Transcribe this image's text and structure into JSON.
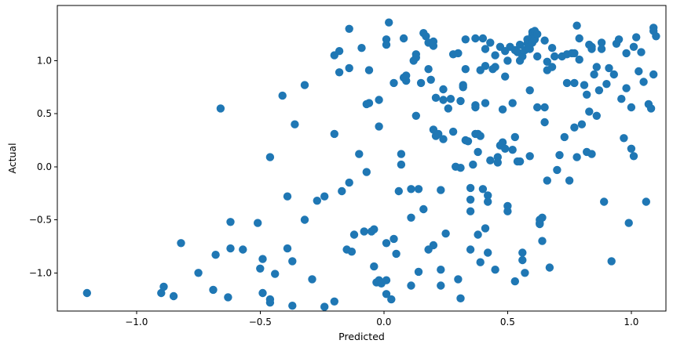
{
  "chart_data": {
    "type": "scatter",
    "title": "",
    "xlabel": "Predicted",
    "ylabel": "Actual",
    "xlim": [
      -1.32,
      1.14
    ],
    "ylim": [
      -1.36,
      1.52
    ],
    "xticks": [
      -1.0,
      -0.5,
      0.0,
      0.5,
      1.0
    ],
    "xtick_labels": [
      "−1.0",
      "−0.5",
      "0.0",
      "0.5",
      "1.0"
    ],
    "yticks": [
      -1.0,
      -0.5,
      0.0,
      0.5,
      1.0
    ],
    "ytick_labels": [
      "−1.0",
      "−0.5",
      "0.0",
      "0.5",
      "1.0"
    ],
    "grid": false,
    "legend": "none",
    "marker_color": "#1f77b4",
    "series": [
      {
        "points": [
          [
            -1.2,
            -1.19
          ],
          [
            -0.9,
            -1.19
          ],
          [
            -0.89,
            -1.13
          ],
          [
            -0.85,
            -1.22
          ],
          [
            -0.82,
            -0.72
          ],
          [
            -0.75,
            -1.0
          ],
          [
            -0.69,
            -1.16
          ],
          [
            -0.68,
            -0.83
          ],
          [
            -0.66,
            0.55
          ],
          [
            -0.63,
            -1.23
          ],
          [
            -0.62,
            -0.77
          ],
          [
            -0.62,
            -0.52
          ],
          [
            -0.57,
            -0.78
          ],
          [
            -0.51,
            -0.53
          ],
          [
            -0.5,
            -0.96
          ],
          [
            -0.49,
            -0.87
          ],
          [
            -0.49,
            -1.19
          ],
          [
            -0.46,
            -1.25
          ],
          [
            -0.46,
            -1.28
          ],
          [
            -0.46,
            0.09
          ],
          [
            -0.44,
            -1.01
          ],
          [
            -0.41,
            0.67
          ],
          [
            -0.39,
            -0.28
          ],
          [
            -0.39,
            -0.77
          ],
          [
            -0.37,
            -0.89
          ],
          [
            -0.37,
            -1.31
          ],
          [
            -0.36,
            0.4
          ],
          [
            -0.32,
            -0.5
          ],
          [
            -0.32,
            0.77
          ],
          [
            -0.29,
            -1.06
          ],
          [
            -0.27,
            -0.32
          ],
          [
            -0.24,
            -0.28
          ],
          [
            -0.24,
            -1.32
          ],
          [
            -0.2,
            -1.27
          ],
          [
            -0.2,
            0.31
          ],
          [
            -0.2,
            1.05
          ],
          [
            -0.18,
            1.09
          ],
          [
            -0.18,
            0.89
          ],
          [
            -0.17,
            -0.23
          ],
          [
            -0.15,
            -0.78
          ],
          [
            -0.14,
            0.93
          ],
          [
            -0.14,
            -0.15
          ],
          [
            -0.14,
            1.3
          ],
          [
            -0.13,
            -0.8
          ],
          [
            -0.12,
            -0.64
          ],
          [
            -0.1,
            0.12
          ],
          [
            -0.09,
            1.12
          ],
          [
            -0.08,
            -0.61
          ],
          [
            -0.07,
            0.59
          ],
          [
            -0.07,
            -0.05
          ],
          [
            -0.06,
            0.91
          ],
          [
            -0.06,
            0.6
          ],
          [
            -0.05,
            -0.61
          ],
          [
            -0.04,
            -0.59
          ],
          [
            -0.04,
            -0.94
          ],
          [
            -0.03,
            -1.09
          ],
          [
            -0.02,
            -1.07
          ],
          [
            -0.02,
            0.63
          ],
          [
            -0.02,
            0.38
          ],
          [
            -0.01,
            -1.1
          ],
          [
            0.01,
            -1.07
          ],
          [
            0.01,
            -1.2
          ],
          [
            0.01,
            1.2
          ],
          [
            0.01,
            -0.72
          ],
          [
            0.01,
            1.15
          ],
          [
            0.02,
            1.36
          ],
          [
            0.03,
            -1.25
          ],
          [
            0.04,
            -0.68
          ],
          [
            0.04,
            0.79
          ],
          [
            0.05,
            -0.82
          ],
          [
            0.06,
            -0.23
          ],
          [
            0.07,
            0.12
          ],
          [
            0.07,
            0.02
          ],
          [
            0.08,
            1.21
          ],
          [
            0.08,
            0.84
          ],
          [
            0.09,
            0.81
          ],
          [
            0.09,
            0.86
          ],
          [
            0.11,
            -0.48
          ],
          [
            0.11,
            -0.21
          ],
          [
            0.11,
            -1.12
          ],
          [
            0.12,
            1.0
          ],
          [
            0.13,
            1.06
          ],
          [
            0.13,
            1.03
          ],
          [
            0.13,
            0.48
          ],
          [
            0.14,
            -0.99
          ],
          [
            0.14,
            -0.21
          ],
          [
            0.15,
            0.79
          ],
          [
            0.16,
            -0.4
          ],
          [
            0.16,
            1.26
          ],
          [
            0.17,
            1.23
          ],
          [
            0.18,
            -0.78
          ],
          [
            0.18,
            0.92
          ],
          [
            0.18,
            1.17
          ],
          [
            0.19,
            0.82
          ],
          [
            0.2,
            1.14
          ],
          [
            0.2,
            1.18
          ],
          [
            0.2,
            -0.74
          ],
          [
            0.2,
            0.35
          ],
          [
            0.21,
            0.29
          ],
          [
            0.21,
            0.65
          ],
          [
            0.22,
            0.31
          ],
          [
            0.23,
            -0.22
          ],
          [
            0.23,
            -1.12
          ],
          [
            0.23,
            -0.97
          ],
          [
            0.24,
            0.63
          ],
          [
            0.24,
            0.73
          ],
          [
            0.24,
            0.26
          ],
          [
            0.25,
            -0.63
          ],
          [
            0.26,
            0.55
          ],
          [
            0.27,
            0.64
          ],
          [
            0.28,
            1.06
          ],
          [
            0.28,
            0.33
          ],
          [
            0.29,
            0.0
          ],
          [
            0.3,
            -1.06
          ],
          [
            0.3,
            1.07
          ],
          [
            0.31,
            -1.24
          ],
          [
            0.31,
            0.62
          ],
          [
            0.31,
            -0.01
          ],
          [
            0.32,
            0.75
          ],
          [
            0.32,
            0.77
          ],
          [
            0.33,
            0.92
          ],
          [
            0.33,
            1.2
          ],
          [
            0.33,
            0.25
          ],
          [
            0.34,
            0.24
          ],
          [
            0.35,
            -0.2
          ],
          [
            0.35,
            -0.31
          ],
          [
            0.35,
            -0.42
          ],
          [
            0.35,
            -0.78
          ],
          [
            0.36,
            0.02
          ],
          [
            0.37,
            0.58
          ],
          [
            0.37,
            0.56
          ],
          [
            0.37,
            0.31
          ],
          [
            0.37,
            1.21
          ],
          [
            0.38,
            0.14
          ],
          [
            0.38,
            0.31
          ],
          [
            0.38,
            -0.64
          ],
          [
            0.39,
            0.29
          ],
          [
            0.39,
            0.91
          ],
          [
            0.39,
            -0.9
          ],
          [
            0.4,
            1.21
          ],
          [
            0.4,
            -0.21
          ],
          [
            0.41,
            0.6
          ],
          [
            0.41,
            0.95
          ],
          [
            0.41,
            1.11
          ],
          [
            0.41,
            -0.58
          ],
          [
            0.42,
            -0.27
          ],
          [
            0.42,
            -0.33
          ],
          [
            0.42,
            -0.81
          ],
          [
            0.43,
            0.06
          ],
          [
            0.43,
            1.17
          ],
          [
            0.44,
            0.92
          ],
          [
            0.45,
            0.94
          ],
          [
            0.45,
            1.05
          ],
          [
            0.45,
            -0.97
          ],
          [
            0.46,
            0.04
          ],
          [
            0.46,
            0.09
          ],
          [
            0.47,
            0.2
          ],
          [
            0.47,
            1.13
          ],
          [
            0.48,
            0.23
          ],
          [
            0.48,
            0.54
          ],
          [
            0.49,
            1.09
          ],
          [
            0.49,
            0.17
          ],
          [
            0.49,
            0.85
          ],
          [
            0.5,
            -0.42
          ],
          [
            0.5,
            1.0
          ],
          [
            0.5,
            -0.37
          ],
          [
            0.51,
            1.13
          ],
          [
            0.52,
            0.6
          ],
          [
            0.52,
            0.16
          ],
          [
            0.53,
            -1.08
          ],
          [
            0.53,
            1.1
          ],
          [
            0.53,
            0.28
          ],
          [
            0.54,
            1.08
          ],
          [
            0.54,
            0.05
          ],
          [
            0.55,
            1.15
          ],
          [
            0.55,
            1.0
          ],
          [
            0.55,
            0.05
          ],
          [
            0.56,
            1.04
          ],
          [
            0.56,
            -0.81
          ],
          [
            0.56,
            -0.88
          ],
          [
            0.57,
            -1.0
          ],
          [
            0.57,
            1.1
          ],
          [
            0.58,
            1.16
          ],
          [
            0.58,
            1.2
          ],
          [
            0.59,
            0.72
          ],
          [
            0.59,
            0.1
          ],
          [
            0.59,
            1.11
          ],
          [
            0.6,
            1.17
          ],
          [
            0.6,
            1.24
          ],
          [
            0.6,
            1.27
          ],
          [
            0.61,
            1.2
          ],
          [
            0.61,
            1.28
          ],
          [
            0.62,
            1.04
          ],
          [
            0.62,
            1.25
          ],
          [
            0.62,
            0.56
          ],
          [
            0.63,
            -0.53
          ],
          [
            0.63,
            -0.54
          ],
          [
            0.63,
            -0.5
          ],
          [
            0.64,
            -0.48
          ],
          [
            0.64,
            -0.7
          ],
          [
            0.65,
            1.19
          ],
          [
            0.65,
            0.56
          ],
          [
            0.65,
            0.42
          ],
          [
            0.66,
            -0.13
          ],
          [
            0.66,
            0.99
          ],
          [
            0.66,
            0.91
          ],
          [
            0.67,
            -0.95
          ],
          [
            0.68,
            0.94
          ],
          [
            0.68,
            1.12
          ],
          [
            0.69,
            1.04
          ],
          [
            0.7,
            -0.03
          ],
          [
            0.71,
            0.11
          ],
          [
            0.72,
            1.04
          ],
          [
            0.73,
            0.28
          ],
          [
            0.74,
            1.06
          ],
          [
            0.74,
            0.79
          ],
          [
            0.75,
            -0.13
          ],
          [
            0.76,
            1.07
          ],
          [
            0.77,
            1.07
          ],
          [
            0.77,
            0.79
          ],
          [
            0.77,
            0.37
          ],
          [
            0.78,
            0.09
          ],
          [
            0.78,
            1.33
          ],
          [
            0.79,
            1.21
          ],
          [
            0.79,
            1.01
          ],
          [
            0.8,
            0.4
          ],
          [
            0.81,
            0.77
          ],
          [
            0.82,
            0.14
          ],
          [
            0.82,
            0.68
          ],
          [
            0.83,
            1.15
          ],
          [
            0.83,
            0.52
          ],
          [
            0.84,
            1.13
          ],
          [
            0.84,
            0.12
          ],
          [
            0.84,
            1.11
          ],
          [
            0.85,
            0.87
          ],
          [
            0.86,
            0.94
          ],
          [
            0.86,
            0.48
          ],
          [
            0.87,
            0.72
          ],
          [
            0.88,
            1.17
          ],
          [
            0.88,
            1.11
          ],
          [
            0.89,
            -0.33
          ],
          [
            0.9,
            0.78
          ],
          [
            0.91,
            0.93
          ],
          [
            0.92,
            -0.89
          ],
          [
            0.93,
            0.87
          ],
          [
            0.94,
            1.16
          ],
          [
            0.95,
            1.2
          ],
          [
            0.96,
            0.64
          ],
          [
            0.97,
            0.27
          ],
          [
            0.98,
            0.74
          ],
          [
            0.98,
            1.07
          ],
          [
            0.99,
            -0.53
          ],
          [
            1.0,
            0.56
          ],
          [
            1.0,
            0.17
          ],
          [
            1.01,
            1.13
          ],
          [
            1.01,
            0.1
          ],
          [
            1.02,
            1.22
          ],
          [
            1.03,
            0.9
          ],
          [
            1.04,
            1.08
          ],
          [
            1.05,
            0.8
          ],
          [
            1.06,
            -0.33
          ],
          [
            1.07,
            0.59
          ],
          [
            1.08,
            0.55
          ],
          [
            1.09,
            1.31
          ],
          [
            1.09,
            1.28
          ],
          [
            1.09,
            0.87
          ],
          [
            1.1,
            1.23
          ]
        ]
      }
    ]
  }
}
